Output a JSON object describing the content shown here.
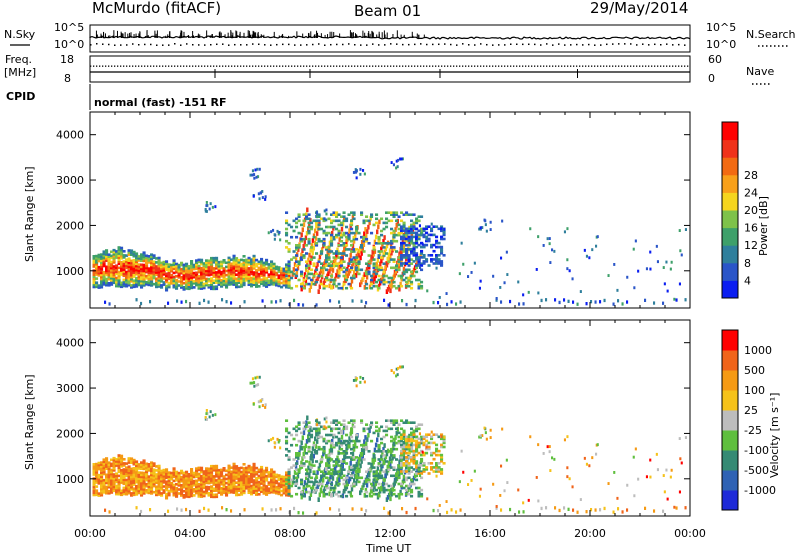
{
  "header": {
    "station": "McMurdo (fitACF)",
    "beam": "Beam 01",
    "date": "29/May/2014"
  },
  "summary_panels": {
    "nsky_label": "N.Sky",
    "nsearch_label": "N.Search",
    "noise_ticks": [
      "10^5",
      "10^0"
    ],
    "noise_ticks_right": [
      "10^5",
      "10^0"
    ],
    "freq_label_1": "Freq.",
    "freq_label_2": "[MHz]",
    "freq_ticks": [
      "18",
      "8"
    ],
    "nave_label": "Nave",
    "nave_ticks": [
      "60",
      "0"
    ],
    "cpid_label": "CPID",
    "cpid_text": "normal (fast) -151 RF"
  },
  "chart_data": [
    {
      "type": "heatmap",
      "title": "",
      "xlabel": "",
      "ylabel": "Slant Range [km]",
      "xlim": [
        0,
        24
      ],
      "ylim": [
        180,
        4500
      ],
      "y_ticks": [
        "1000",
        "2000",
        "3000",
        "4000"
      ],
      "colorbar_label": "Power [dB]",
      "colorbar_ticks": [
        "4",
        "8",
        "12",
        "16",
        "20",
        "24",
        "28"
      ],
      "colorbar_colors": [
        "#0b1ef0",
        "#2a55c8",
        "#2f7f9c",
        "#3ea06a",
        "#7ec24a",
        "#f5d51e",
        "#f8a01a",
        "#f26a12",
        "#f0321a",
        "#ff0000"
      ],
      "grid": false
    },
    {
      "type": "heatmap",
      "title": "",
      "xlabel": "Time UT",
      "ylabel": "Slant Range [km]",
      "xlim": [
        0,
        24
      ],
      "ylim": [
        180,
        4500
      ],
      "y_ticks": [
        "1000",
        "2000",
        "3000",
        "4000"
      ],
      "x_ticks": [
        "00:00",
        "04:00",
        "08:00",
        "12:00",
        "16:00",
        "20:00",
        "00:00"
      ],
      "colorbar_label": "Velocity [m s⁻¹]",
      "colorbar_ticks": [
        "1000",
        "500",
        "100",
        "25",
        "-25",
        "-100",
        "-500",
        "-1000"
      ],
      "colorbar_colors": [
        "#1e2ad8",
        "#2f62b4",
        "#358a74",
        "#5fbf3e",
        "#bdbdbd",
        "#f5c21a",
        "#f59a14",
        "#f0641a",
        "#ff0000"
      ],
      "grid": false
    }
  ]
}
